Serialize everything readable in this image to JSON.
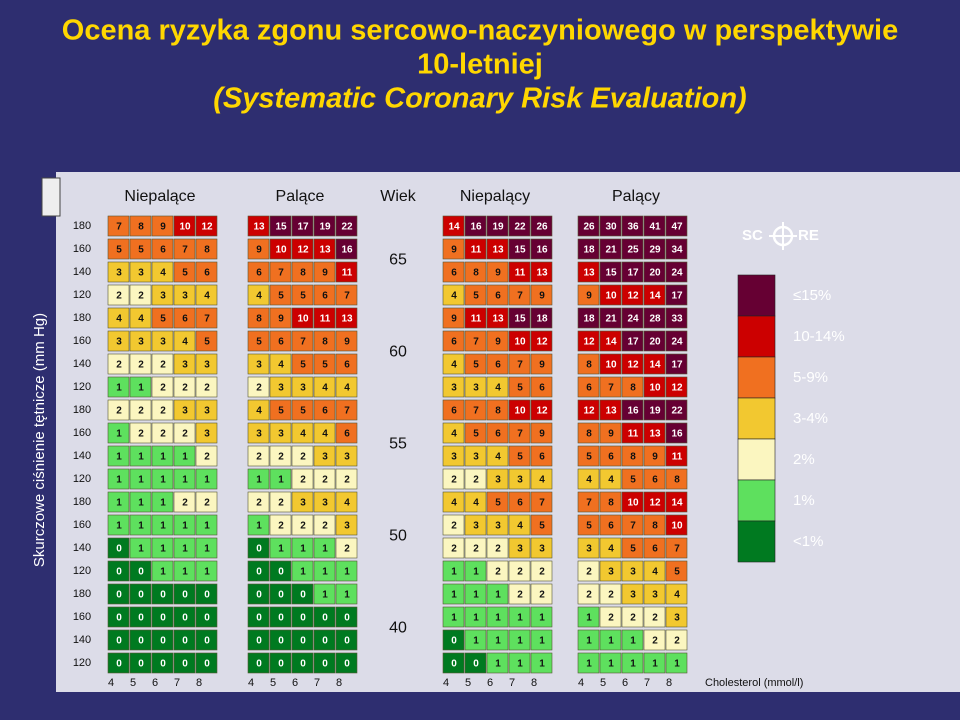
{
  "title": [
    "Ocena ryzyka zgonu sercowo-naczyniowego w perspektywie",
    "10-letniej",
    "(Systematic Coronary Risk Evaluation)"
  ],
  "y_axis_label": "Skurczowe ciśnienie tętnicze (mm Hg)",
  "group_headers": [
    "Niepalące",
    "Palące",
    "Wiek",
    "Niepalący",
    "Palący"
  ],
  "blood_pressure": [
    180,
    160,
    140,
    120
  ],
  "cholesterol": [
    4,
    5,
    6,
    7,
    8
  ],
  "cholesterol_label": "Cholesterol (mmol/l)",
  "logo": [
    "SC",
    "RE"
  ],
  "legend": [
    {
      "label": "≤15%",
      "color": "#660033"
    },
    {
      "label": "10-14%",
      "color": "#cc0000"
    },
    {
      "label": "5-9%",
      "color": "#f07020"
    },
    {
      "label": "3-4%",
      "color": "#f2c830"
    },
    {
      "label": "2%",
      "color": "#fbf6c0"
    },
    {
      "label": "1%",
      "color": "#5ee05e"
    },
    {
      "label": "<1%",
      "color": "#007a20"
    }
  ],
  "blocks": [
    {
      "age": 65,
      "panels": [
        [
          [
            7,
            8,
            9,
            10,
            12
          ],
          [
            5,
            5,
            6,
            7,
            8
          ],
          [
            3,
            3,
            4,
            5,
            6
          ],
          [
            2,
            2,
            3,
            3,
            4
          ]
        ],
        [
          [
            13,
            15,
            17,
            19,
            22
          ],
          [
            9,
            10,
            12,
            13,
            16
          ],
          [
            6,
            7,
            8,
            9,
            11
          ],
          [
            4,
            5,
            5,
            6,
            7
          ]
        ],
        [
          [
            14,
            16,
            19,
            22,
            26
          ],
          [
            9,
            11,
            13,
            15,
            16
          ],
          [
            6,
            8,
            9,
            11,
            13
          ],
          [
            4,
            5,
            6,
            7,
            9
          ]
        ],
        [
          [
            26,
            30,
            36,
            41,
            47
          ],
          [
            18,
            21,
            25,
            29,
            34
          ],
          [
            13,
            15,
            17,
            20,
            24
          ],
          [
            9,
            10,
            12,
            14,
            17
          ]
        ]
      ]
    },
    {
      "age": 60,
      "panels": [
        [
          [
            4,
            4,
            5,
            6,
            7
          ],
          [
            3,
            3,
            3,
            4,
            5
          ],
          [
            2,
            2,
            2,
            3,
            3
          ],
          [
            1,
            1,
            2,
            2,
            2
          ]
        ],
        [
          [
            8,
            9,
            10,
            11,
            13
          ],
          [
            5,
            6,
            7,
            8,
            9
          ],
          [
            3,
            4,
            5,
            5,
            6
          ],
          [
            2,
            3,
            3,
            4,
            4
          ]
        ],
        [
          [
            9,
            11,
            13,
            15,
            18
          ],
          [
            6,
            7,
            9,
            10,
            12
          ],
          [
            4,
            5,
            6,
            7,
            9
          ],
          [
            3,
            3,
            4,
            5,
            6
          ]
        ],
        [
          [
            18,
            21,
            24,
            28,
            33
          ],
          [
            12,
            14,
            17,
            20,
            24
          ],
          [
            8,
            10,
            12,
            14,
            17
          ],
          [
            6,
            7,
            8,
            10,
            12
          ]
        ]
      ]
    },
    {
      "age": 55,
      "panels": [
        [
          [
            2,
            2,
            2,
            3,
            3
          ],
          [
            1,
            2,
            2,
            2,
            3
          ],
          [
            1,
            1,
            1,
            1,
            2
          ],
          [
            1,
            1,
            1,
            1,
            1
          ]
        ],
        [
          [
            4,
            5,
            5,
            6,
            7
          ],
          [
            3,
            3,
            4,
            4,
            6
          ],
          [
            2,
            2,
            2,
            3,
            3
          ],
          [
            1,
            1,
            2,
            2,
            2
          ]
        ],
        [
          [
            6,
            7,
            8,
            10,
            12
          ],
          [
            4,
            5,
            6,
            7,
            9
          ],
          [
            3,
            3,
            4,
            5,
            6
          ],
          [
            2,
            2,
            3,
            3,
            4
          ]
        ],
        [
          [
            12,
            13,
            16,
            19,
            22
          ],
          [
            8,
            9,
            11,
            13,
            16
          ],
          [
            5,
            6,
            8,
            9,
            11
          ],
          [
            4,
            4,
            5,
            6,
            8
          ]
        ]
      ]
    },
    {
      "age": 50,
      "panels": [
        [
          [
            1,
            1,
            1,
            2,
            2
          ],
          [
            1,
            1,
            1,
            1,
            1
          ],
          [
            0,
            1,
            1,
            1,
            1
          ],
          [
            0,
            0,
            1,
            1,
            1
          ]
        ],
        [
          [
            2,
            2,
            3,
            3,
            4
          ],
          [
            1,
            2,
            2,
            2,
            3
          ],
          [
            0,
            1,
            1,
            1,
            2
          ],
          [
            0,
            0,
            1,
            1,
            1
          ]
        ],
        [
          [
            4,
            4,
            5,
            6,
            7
          ],
          [
            2,
            3,
            3,
            4,
            5
          ],
          [
            2,
            2,
            2,
            3,
            3
          ],
          [
            1,
            1,
            2,
            2,
            2
          ]
        ],
        [
          [
            7,
            8,
            10,
            12,
            14
          ],
          [
            5,
            6,
            7,
            8,
            10
          ],
          [
            3,
            4,
            5,
            6,
            7
          ],
          [
            2,
            3,
            3,
            4,
            5
          ]
        ]
      ]
    },
    {
      "age": 40,
      "panels": [
        [
          [
            0,
            0,
            0,
            0,
            0
          ],
          [
            0,
            0,
            0,
            0,
            0
          ],
          [
            0,
            0,
            0,
            0,
            0
          ],
          [
            0,
            0,
            0,
            0,
            0
          ]
        ],
        [
          [
            0,
            0,
            0,
            1,
            1
          ],
          [
            0,
            0,
            0,
            0,
            0
          ],
          [
            0,
            0,
            0,
            0,
            0
          ],
          [
            0,
            0,
            0,
            0,
            0
          ]
        ],
        [
          [
            1,
            1,
            1,
            2,
            2
          ],
          [
            1,
            1,
            1,
            1,
            1
          ],
          [
            0,
            1,
            1,
            1,
            1
          ],
          [
            0,
            0,
            1,
            1,
            1
          ]
        ],
        [
          [
            2,
            2,
            3,
            3,
            4
          ],
          [
            1,
            2,
            2,
            2,
            3
          ],
          [
            1,
            1,
            1,
            2,
            2
          ],
          [
            1,
            1,
            1,
            1,
            1
          ]
        ]
      ]
    }
  ]
}
